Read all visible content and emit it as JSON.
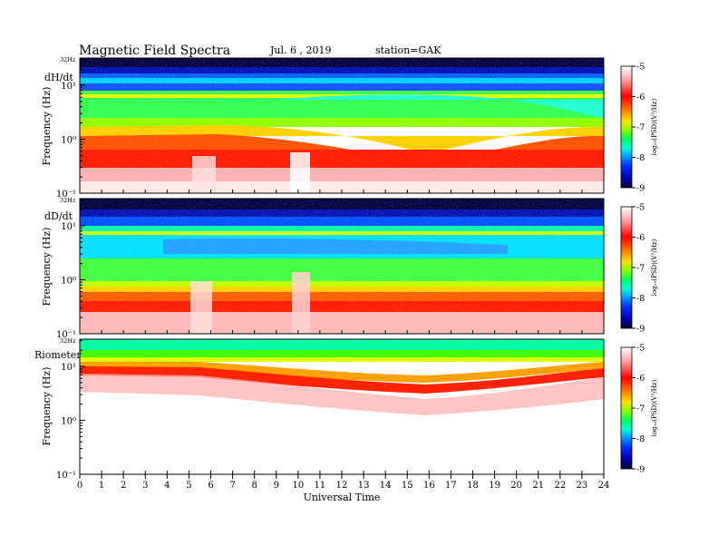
{
  "header": {
    "title": "Magnetic  Field  Spectra",
    "date": "Jul.  6  , 2019",
    "station": "station=GAK"
  },
  "chart_data": [
    {
      "type": "heatmap",
      "panel_label": "dH/dt",
      "ylabel": "Frequency  (Hz)",
      "ylim": [
        0.1,
        32
      ],
      "y_scale": "log",
      "y_ticks": [
        "10¹",
        "10⁰",
        "10⁻¹"
      ],
      "y_top_label": "32Hz",
      "xlim": [
        0,
        24
      ],
      "colorbar": {
        "min": -9,
        "max": -5,
        "ticks": [
          "-5",
          "-6",
          "-7",
          "-8",
          "-9"
        ],
        "label": "log₁₀(PSD)(V²/Hz)"
      }
    },
    {
      "type": "heatmap",
      "panel_label": "dD/dt",
      "ylabel": "Frequency  (Hz)",
      "ylim": [
        0.1,
        32
      ],
      "y_scale": "log",
      "y_ticks": [
        "10¹",
        "10⁰",
        "10⁻¹"
      ],
      "y_top_label": "32Hz",
      "xlim": [
        0,
        24
      ],
      "colorbar": {
        "min": -9,
        "max": -5,
        "ticks": [
          "-5",
          "-6",
          "-7",
          "-8",
          "-9"
        ],
        "label": "log₁₀(PSD)(V²/Hz)"
      }
    },
    {
      "type": "heatmap",
      "panel_label": "Riometer",
      "ylabel": "Frequency  (Hz)",
      "ylim": [
        0.1,
        32
      ],
      "y_scale": "log",
      "y_ticks": [
        "10¹",
        "10⁰",
        "10⁻¹"
      ],
      "y_top_label": "32Hz",
      "xlim": [
        0,
        24
      ],
      "xlabel": "Universal  Time",
      "x_ticks": [
        "0",
        "1",
        "2",
        "3",
        "4",
        "5",
        "6",
        "7",
        "8",
        "9",
        "10",
        "11",
        "12",
        "13",
        "14",
        "15",
        "16",
        "17",
        "18",
        "19",
        "20",
        "21",
        "22",
        "23",
        "24"
      ],
      "colorbar": {
        "min": -9,
        "max": -5,
        "ticks": [
          "-5",
          "-6",
          "-7",
          "-8",
          "-9"
        ],
        "label": "log₁₀(PSD)(V²/Hz)"
      }
    }
  ],
  "colors": {
    "colormap": [
      "#00002a",
      "#0000c8",
      "#0050ff",
      "#00c8ff",
      "#00ffa0",
      "#30ff00",
      "#c8ff00",
      "#ffd000",
      "#ff6000",
      "#ff0000",
      "#ffd0d0",
      "#ffffff"
    ]
  }
}
